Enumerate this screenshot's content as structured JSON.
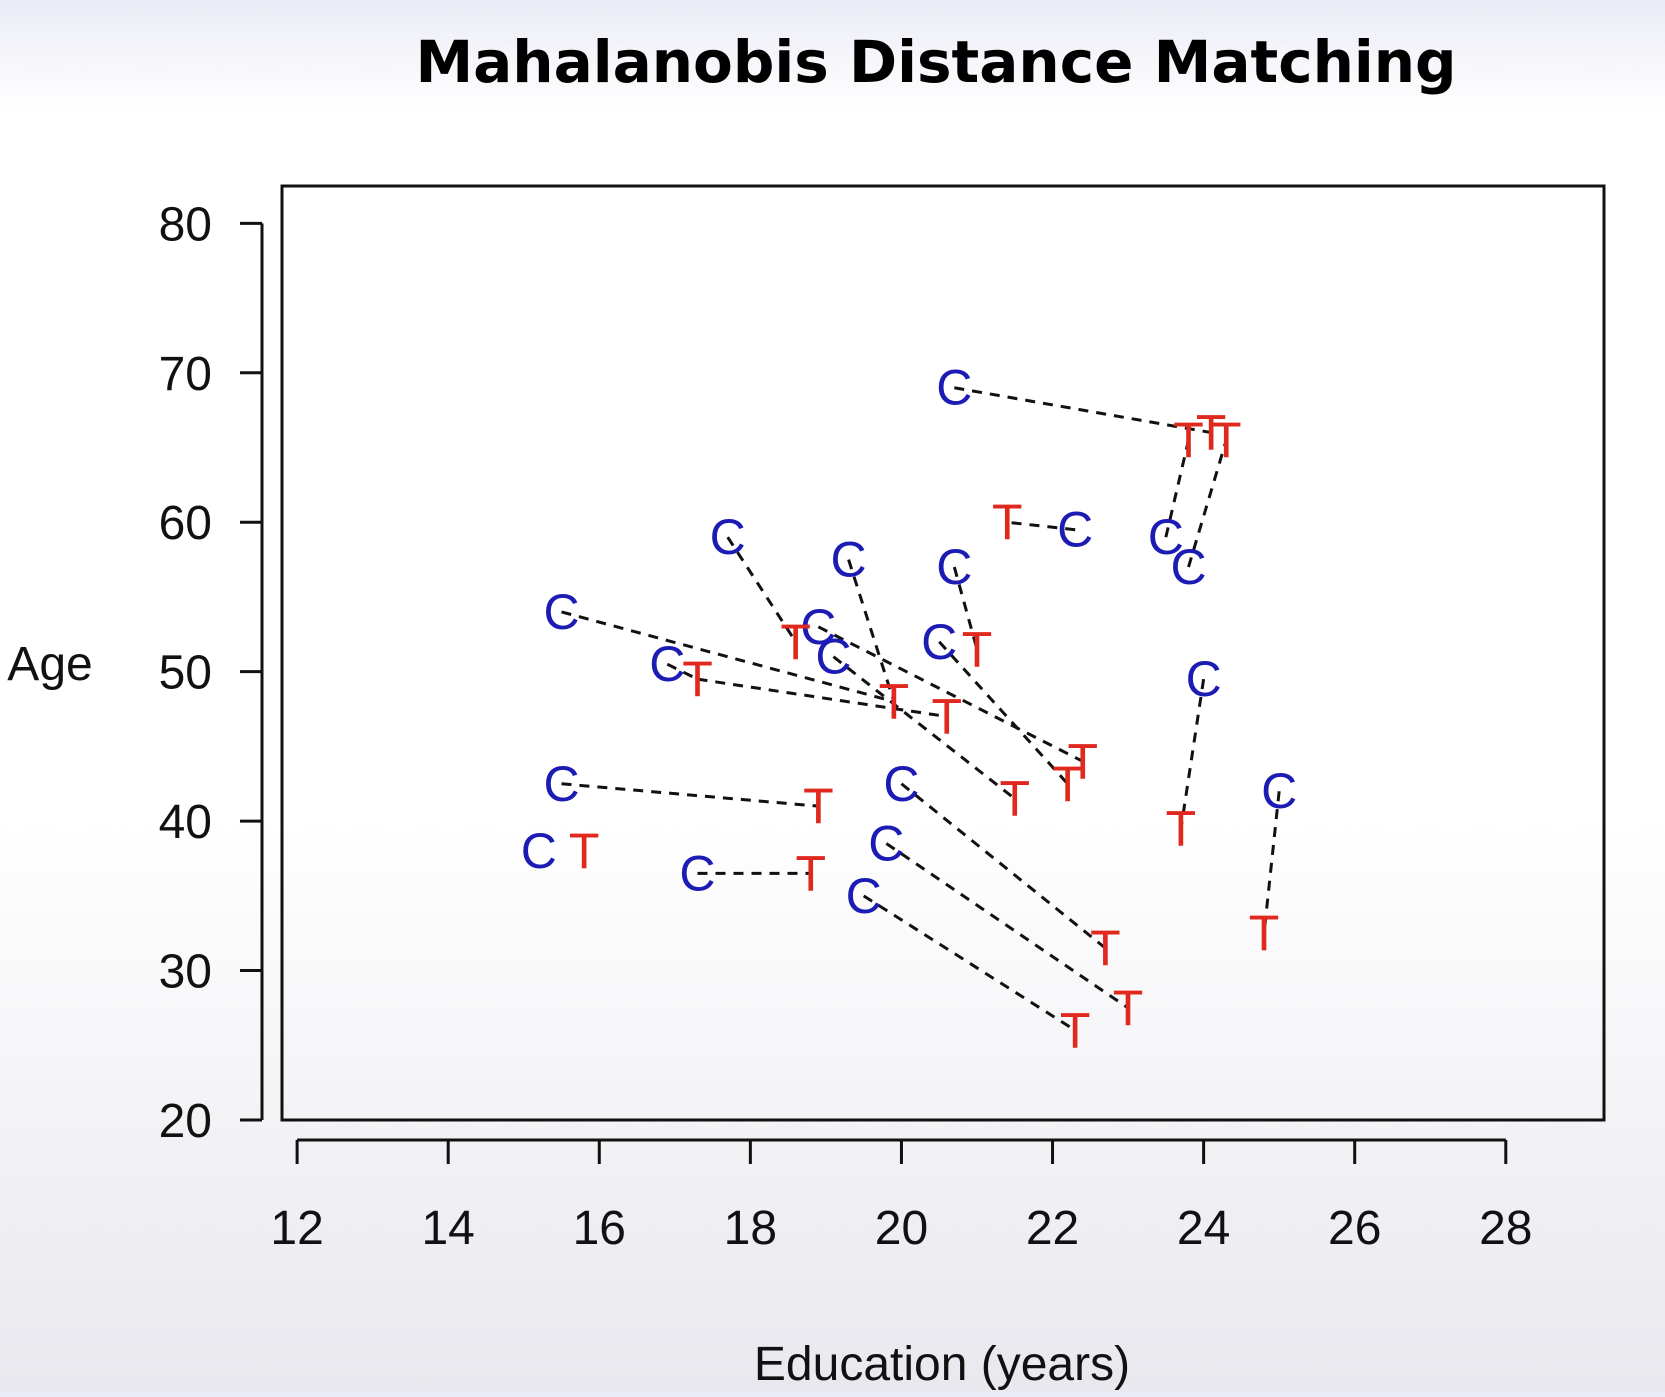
{
  "chart_data": {
    "type": "scatter",
    "title": "Mahalanobis Distance Matching",
    "xlabel": "Education (years)",
    "ylabel": "Age",
    "xlim": [
      11.8,
      29.3
    ],
    "ylim": [
      20,
      82.5
    ],
    "x_ticks": [
      12,
      14,
      16,
      18,
      20,
      22,
      24,
      26,
      28
    ],
    "y_ticks": [
      20,
      30,
      40,
      50,
      60,
      70,
      80
    ],
    "grid": false,
    "legend": "none",
    "series": [
      {
        "marker": "C",
        "color": "#1c1cb4",
        "points": [
          [
            20.7,
            69
          ],
          [
            15.5,
            54
          ],
          [
            17.7,
            59
          ],
          [
            19.3,
            57.5
          ],
          [
            20.7,
            57
          ],
          [
            22.3,
            59.5
          ],
          [
            23.5,
            59
          ],
          [
            23.8,
            57
          ],
          [
            16.9,
            50.5
          ],
          [
            18.9,
            53
          ],
          [
            19.1,
            51
          ],
          [
            20.5,
            52
          ],
          [
            24.0,
            49.5
          ],
          [
            15.5,
            42.5
          ],
          [
            20.0,
            42.5
          ],
          [
            19.8,
            38.5
          ],
          [
            15.2,
            38
          ],
          [
            17.3,
            36.5
          ],
          [
            19.5,
            35
          ],
          [
            25.0,
            42
          ]
        ]
      },
      {
        "marker": "T",
        "color": "#e0281e",
        "points": [
          [
            23.8,
            65.5
          ],
          [
            24.1,
            66
          ],
          [
            24.3,
            65.5
          ],
          [
            21.4,
            60
          ],
          [
            18.6,
            52
          ],
          [
            17.3,
            49.5
          ],
          [
            19.9,
            48
          ],
          [
            20.6,
            47
          ],
          [
            21.0,
            51.5
          ],
          [
            22.4,
            44
          ],
          [
            22.2,
            42.5
          ],
          [
            21.5,
            41.5
          ],
          [
            18.9,
            41
          ],
          [
            23.7,
            39.5
          ],
          [
            15.8,
            38
          ],
          [
            18.8,
            36.5
          ],
          [
            22.7,
            31.5
          ],
          [
            24.8,
            32.5
          ],
          [
            23.0,
            27.5
          ],
          [
            22.3,
            26
          ]
        ]
      }
    ],
    "matches": [
      [
        [
          20.7,
          69
        ],
        [
          24.1,
          66
        ]
      ],
      [
        [
          23.5,
          59
        ],
        [
          23.8,
          65.5
        ]
      ],
      [
        [
          23.8,
          57
        ],
        [
          24.3,
          65.5
        ]
      ],
      [
        [
          22.3,
          59.5
        ],
        [
          21.4,
          60
        ]
      ],
      [
        [
          17.7,
          59
        ],
        [
          18.6,
          52
        ]
      ],
      [
        [
          19.3,
          57.5
        ],
        [
          19.9,
          48
        ]
      ],
      [
        [
          20.7,
          57
        ],
        [
          21.0,
          51.5
        ]
      ],
      [
        [
          15.5,
          54
        ],
        [
          19.9,
          48
        ]
      ],
      [
        [
          16.9,
          50.5
        ],
        [
          17.3,
          49.5
        ]
      ],
      [
        [
          17.3,
          49.5
        ],
        [
          20.6,
          47
        ]
      ],
      [
        [
          18.9,
          53
        ],
        [
          22.4,
          44
        ]
      ],
      [
        [
          19.1,
          51
        ],
        [
          21.5,
          41.5
        ]
      ],
      [
        [
          20.5,
          52
        ],
        [
          22.2,
          42.5
        ]
      ],
      [
        [
          24.0,
          49.5
        ],
        [
          23.7,
          39.5
        ]
      ],
      [
        [
          15.5,
          42.5
        ],
        [
          18.9,
          41
        ]
      ],
      [
        [
          20.0,
          42.5
        ],
        [
          22.7,
          31.5
        ]
      ],
      [
        [
          19.8,
          38.5
        ],
        [
          23.0,
          27.5
        ]
      ],
      [
        [
          17.3,
          36.5
        ],
        [
          18.8,
          36.5
        ]
      ],
      [
        [
          19.5,
          35
        ],
        [
          22.3,
          26
        ]
      ],
      [
        [
          25.0,
          42
        ],
        [
          24.8,
          32.5
        ]
      ]
    ]
  }
}
